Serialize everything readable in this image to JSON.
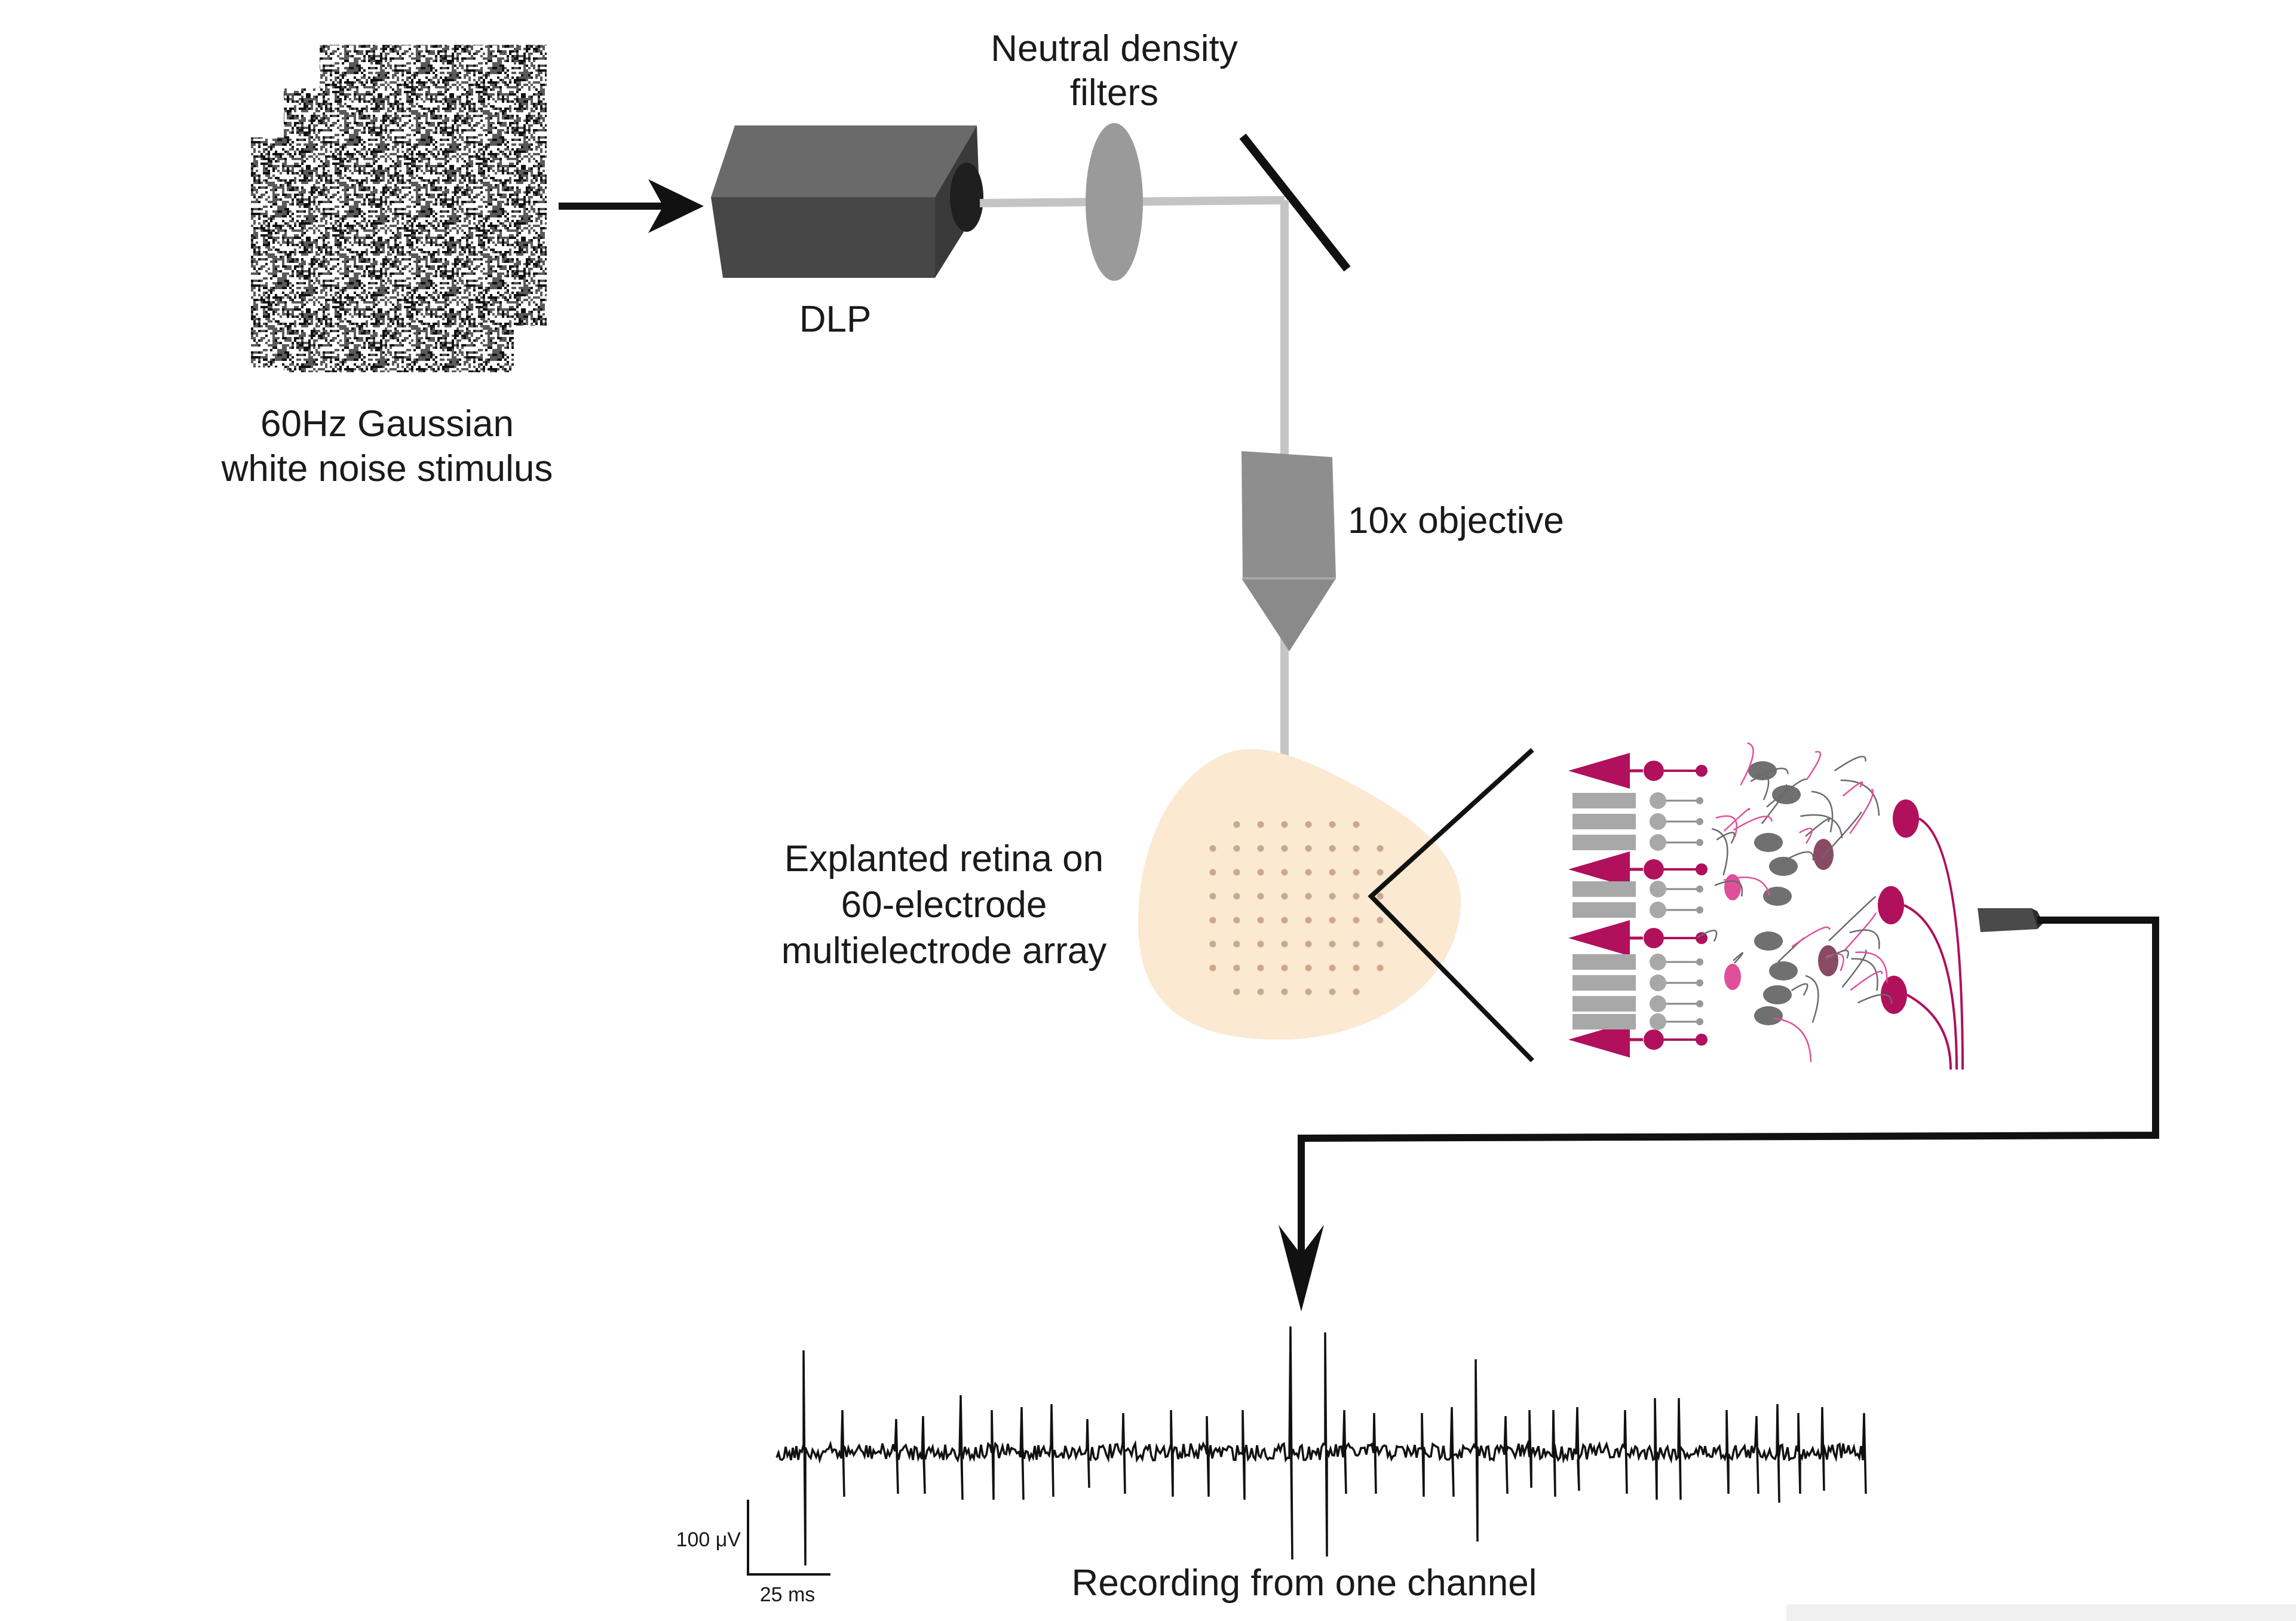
{
  "labels": {
    "stimulus_line1": "60Hz Gaussian",
    "stimulus_line2": "white noise stimulus",
    "dlp": "DLP",
    "nd_line1": "Neutral density",
    "nd_line2": "filters",
    "objective": "10x objective",
    "retina_line1": "Explanted retina on",
    "retina_line2": "60-electrode",
    "retina_line3": "multielectrode array",
    "recording": "Recording from one channel",
    "scale_voltage": "100 μV",
    "scale_time": "25 ms"
  },
  "colors": {
    "projector": "#4a4a4a",
    "light_path": "#c4c4c4",
    "filter": "#9a9a9a",
    "objective": "#8e8e8e",
    "retina_fill": "#fbe9d2",
    "electrode": "#c9a98e",
    "magenta": "#b0105c",
    "magenta_light": "#e0509a",
    "cell_gray": "#707070",
    "photoreceptor": "#a8a8a8",
    "trace": "#111111"
  },
  "electrode_array": {
    "rows": 8,
    "cols": 8,
    "omitted": "corners"
  }
}
